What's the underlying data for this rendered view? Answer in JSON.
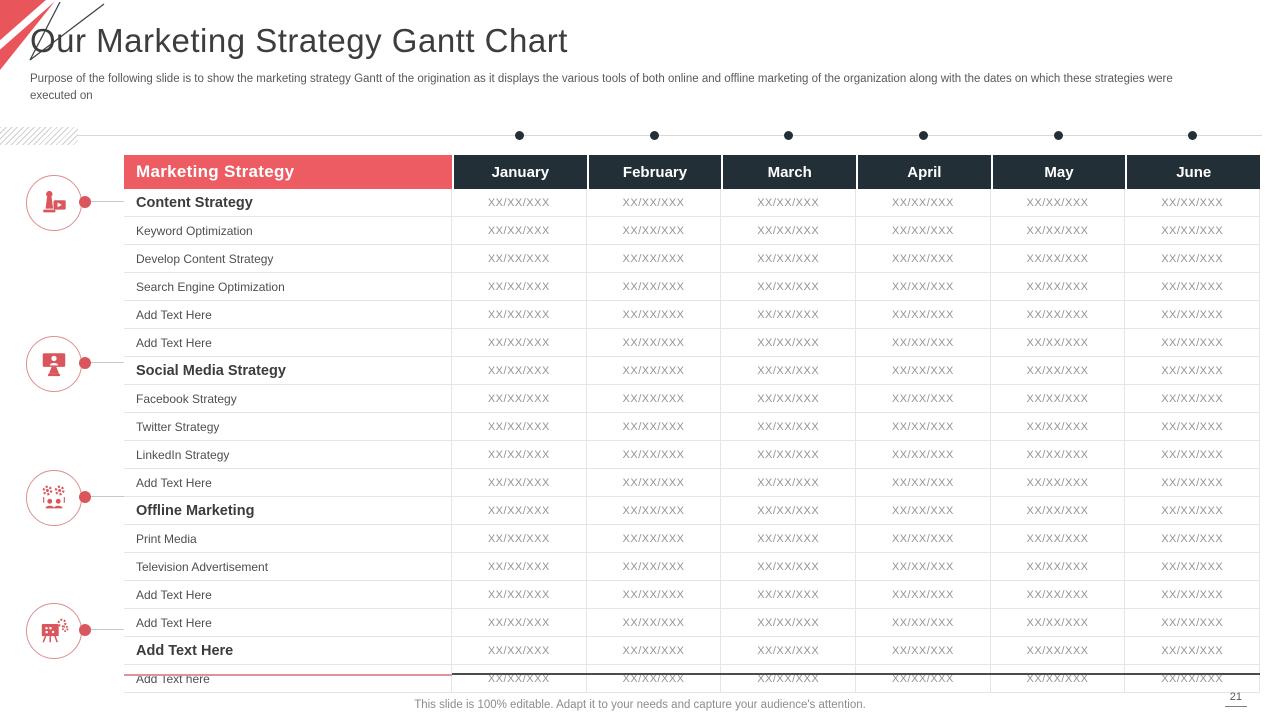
{
  "slide": {
    "title": "Our Marketing Strategy Gantt Chart",
    "subtitle": "Purpose of the following slide is to show the marketing strategy Gantt  of the origination as it displays the various tools of both online and offline marketing of the organization along with the dates on which these strategies were executed on",
    "footer": "This slide is 100% editable. Adapt it to your needs and capture your audience's attention.",
    "page_number": "21"
  },
  "colors": {
    "accent_red": "#ec5c62",
    "header_dark": "#232f37",
    "icon_red": "#d9565c",
    "grid_line": "#e5e5e5",
    "cell_text": "#949494"
  },
  "icons": [
    {
      "name": "content-strategy-icon"
    },
    {
      "name": "social-media-strategy-icon"
    },
    {
      "name": "offline-marketing-icon"
    },
    {
      "name": "campaign-board-icon"
    }
  ],
  "table": {
    "columns": [
      "Marketing Strategy",
      "January",
      "February",
      "March",
      "April",
      "May",
      "June"
    ],
    "date_placeholder": "XX/XX/XXX",
    "rows": [
      {
        "label": "Content Strategy",
        "bold": true,
        "values": [
          "XX/XX/XXX",
          "XX/XX/XXX",
          "XX/XX/XXX",
          "XX/XX/XXX",
          "XX/XX/XXX",
          "XX/XX/XXX"
        ]
      },
      {
        "label": "Keyword Optimization",
        "bold": false,
        "values": [
          "XX/XX/XXX",
          "XX/XX/XXX",
          "XX/XX/XXX",
          "XX/XX/XXX",
          "XX/XX/XXX",
          "XX/XX/XXX"
        ]
      },
      {
        "label": "Develop Content Strategy",
        "bold": false,
        "values": [
          "XX/XX/XXX",
          "XX/XX/XXX",
          "XX/XX/XXX",
          "XX/XX/XXX",
          "XX/XX/XXX",
          "XX/XX/XXX"
        ]
      },
      {
        "label": "Search Engine Optimization",
        "bold": false,
        "values": [
          "XX/XX/XXX",
          "XX/XX/XXX",
          "XX/XX/XXX",
          "XX/XX/XXX",
          "XX/XX/XXX",
          "XX/XX/XXX"
        ]
      },
      {
        "label": "Add Text Here",
        "bold": false,
        "values": [
          "XX/XX/XXX",
          "XX/XX/XXX",
          "XX/XX/XXX",
          "XX/XX/XXX",
          "XX/XX/XXX",
          "XX/XX/XXX"
        ]
      },
      {
        "label": "Add Text Here",
        "bold": false,
        "values": [
          "XX/XX/XXX",
          "XX/XX/XXX",
          "XX/XX/XXX",
          "XX/XX/XXX",
          "XX/XX/XXX",
          "XX/XX/XXX"
        ]
      },
      {
        "label": "Social Media Strategy",
        "bold": true,
        "values": [
          "XX/XX/XXX",
          "XX/XX/XXX",
          "XX/XX/XXX",
          "XX/XX/XXX",
          "XX/XX/XXX",
          "XX/XX/XXX"
        ]
      },
      {
        "label": "Facebook Strategy",
        "bold": false,
        "values": [
          "XX/XX/XXX",
          "XX/XX/XXX",
          "XX/XX/XXX",
          "XX/XX/XXX",
          "XX/XX/XXX",
          "XX/XX/XXX"
        ]
      },
      {
        "label": "Twitter Strategy",
        "bold": false,
        "values": [
          "XX/XX/XXX",
          "XX/XX/XXX",
          "XX/XX/XXX",
          "XX/XX/XXX",
          "XX/XX/XXX",
          "XX/XX/XXX"
        ]
      },
      {
        "label": "LinkedIn Strategy",
        "bold": false,
        "values": [
          "XX/XX/XXX",
          "XX/XX/XXX",
          "XX/XX/XXX",
          "XX/XX/XXX",
          "XX/XX/XXX",
          "XX/XX/XXX"
        ]
      },
      {
        "label": "Add Text Here",
        "bold": false,
        "values": [
          "XX/XX/XXX",
          "XX/XX/XXX",
          "XX/XX/XXX",
          "XX/XX/XXX",
          "XX/XX/XXX",
          "XX/XX/XXX"
        ]
      },
      {
        "label": "Offline Marketing",
        "bold": true,
        "values": [
          "XX/XX/XXX",
          "XX/XX/XXX",
          "XX/XX/XXX",
          "XX/XX/XXX",
          "XX/XX/XXX",
          "XX/XX/XXX"
        ]
      },
      {
        "label": "Print Media",
        "bold": false,
        "values": [
          "XX/XX/XXX",
          "XX/XX/XXX",
          "XX/XX/XXX",
          "XX/XX/XXX",
          "XX/XX/XXX",
          "XX/XX/XXX"
        ]
      },
      {
        "label": "Television Advertisement",
        "bold": false,
        "values": [
          "XX/XX/XXX",
          "XX/XX/XXX",
          "XX/XX/XXX",
          "XX/XX/XXX",
          "XX/XX/XXX",
          "XX/XX/XXX"
        ]
      },
      {
        "label": "Add Text Here",
        "bold": false,
        "values": [
          "XX/XX/XXX",
          "XX/XX/XXX",
          "XX/XX/XXX",
          "XX/XX/XXX",
          "XX/XX/XXX",
          "XX/XX/XXX"
        ]
      },
      {
        "label": "Add Text Here",
        "bold": false,
        "values": [
          "XX/XX/XXX",
          "XX/XX/XXX",
          "XX/XX/XXX",
          "XX/XX/XXX",
          "XX/XX/XXX",
          "XX/XX/XXX"
        ]
      },
      {
        "label": "Add Text Here",
        "bold": true,
        "values": [
          "XX/XX/XXX",
          "XX/XX/XXX",
          "XX/XX/XXX",
          "XX/XX/XXX",
          "XX/XX/XXX",
          "XX/XX/XXX"
        ]
      },
      {
        "label": "Add Text here",
        "bold": false,
        "values": [
          "XX/XX/XXX",
          "XX/XX/XXX",
          "XX/XX/XXX",
          "XX/XX/XXX",
          "XX/XX/XXX",
          "XX/XX/XXX"
        ]
      }
    ]
  }
}
